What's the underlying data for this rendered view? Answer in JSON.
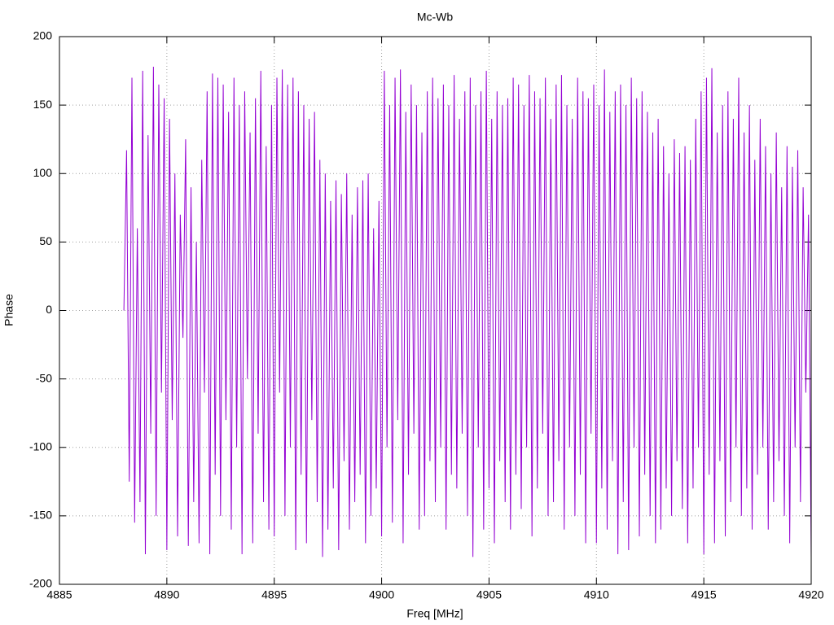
{
  "chart_data": {
    "type": "line",
    "title": "Mc-Wb",
    "x_label": "Freq [MHz]",
    "y_label": "Phase",
    "xlim": [
      4885,
      4920
    ],
    "xticks": [
      4885,
      4890,
      4895,
      4900,
      4905,
      4910,
      4915,
      4920
    ],
    "ylim": [
      -200,
      200
    ],
    "yticks": [
      -200,
      -150,
      -100,
      -50,
      0,
      50,
      100,
      150,
      200
    ],
    "grid": true,
    "series": [
      {
        "color": "#9400d3",
        "x": [
          4888,
          4888.125,
          4888.25,
          4888.375,
          4888.5,
          4888.625,
          4888.75,
          4888.875,
          4889,
          4889.125,
          4889.25,
          4889.375,
          4889.5,
          4889.625,
          4889.75,
          4889.875,
          4890,
          4890.125,
          4890.25,
          4890.375,
          4890.5,
          4890.625,
          4890.75,
          4890.875,
          4891,
          4891.125,
          4891.25,
          4891.375,
          4891.5,
          4891.625,
          4891.75,
          4891.875,
          4892,
          4892.125,
          4892.25,
          4892.375,
          4892.5,
          4892.625,
          4892.75,
          4892.875,
          4893,
          4893.125,
          4893.25,
          4893.375,
          4893.5,
          4893.625,
          4893.75,
          4893.875,
          4894,
          4894.125,
          4894.25,
          4894.375,
          4894.5,
          4894.625,
          4894.75,
          4894.875,
          4895,
          4895.125,
          4895.25,
          4895.375,
          4895.5,
          4895.625,
          4895.75,
          4895.875,
          4896,
          4896.125,
          4896.25,
          4896.375,
          4896.5,
          4896.625,
          4896.75,
          4896.875,
          4897,
          4897.125,
          4897.25,
          4897.375,
          4897.5,
          4897.625,
          4897.75,
          4897.875,
          4898,
          4898.125,
          4898.25,
          4898.375,
          4898.5,
          4898.625,
          4898.75,
          4898.875,
          4899,
          4899.125,
          4899.25,
          4899.375,
          4899.5,
          4899.625,
          4899.75,
          4899.875,
          4900,
          4900.125,
          4900.25,
          4900.375,
          4900.5,
          4900.625,
          4900.75,
          4900.875,
          4901,
          4901.125,
          4901.25,
          4901.375,
          4901.5,
          4901.625,
          4901.75,
          4901.875,
          4902,
          4902.125,
          4902.25,
          4902.375,
          4902.5,
          4902.625,
          4902.75,
          4902.875,
          4903,
          4903.125,
          4903.25,
          4903.375,
          4903.5,
          4903.625,
          4903.75,
          4903.875,
          4904,
          4904.125,
          4904.25,
          4904.375,
          4904.5,
          4904.625,
          4904.75,
          4904.875,
          4905,
          4905.125,
          4905.25,
          4905.375,
          4905.5,
          4905.625,
          4905.75,
          4905.875,
          4906,
          4906.125,
          4906.25,
          4906.375,
          4906.5,
          4906.625,
          4906.75,
          4906.875,
          4907,
          4907.125,
          4907.25,
          4907.375,
          4907.5,
          4907.625,
          4907.75,
          4907.875,
          4908,
          4908.125,
          4908.25,
          4908.375,
          4908.5,
          4908.625,
          4908.75,
          4908.875,
          4909,
          4909.125,
          4909.25,
          4909.375,
          4909.5,
          4909.625,
          4909.75,
          4909.875,
          4910,
          4910.125,
          4910.25,
          4910.375,
          4910.5,
          4910.625,
          4910.75,
          4910.875,
          4911,
          4911.125,
          4911.25,
          4911.375,
          4911.5,
          4911.625,
          4911.75,
          4911.875,
          4912,
          4912.125,
          4912.25,
          4912.375,
          4912.5,
          4912.625,
          4912.75,
          4912.875,
          4913,
          4913.125,
          4913.25,
          4913.375,
          4913.5,
          4913.625,
          4913.75,
          4913.875,
          4914,
          4914.125,
          4914.25,
          4914.375,
          4914.5,
          4914.625,
          4914.75,
          4914.875,
          4915,
          4915.125,
          4915.25,
          4915.375,
          4915.5,
          4915.625,
          4915.75,
          4915.875,
          4916,
          4916.125,
          4916.25,
          4916.375,
          4916.5,
          4916.625,
          4916.75,
          4916.875,
          4917,
          4917.125,
          4917.25,
          4917.375,
          4917.5,
          4917.625,
          4917.75,
          4917.875,
          4918,
          4918.125,
          4918.25,
          4918.375,
          4918.5,
          4918.625,
          4918.75,
          4918.875,
          4919,
          4919.125,
          4919.25,
          4919.375,
          4919.5,
          4919.625,
          4919.75,
          4919.875,
          4920
        ],
        "values": [
          0,
          117,
          -125,
          170,
          -155,
          60,
          -140,
          175,
          -178,
          128,
          -90,
          178,
          -150,
          165,
          -60,
          155,
          -175,
          140,
          -80,
          100,
          -165,
          70,
          -20,
          125,
          -172,
          90,
          -140,
          50,
          -170,
          110,
          -60,
          160,
          -178,
          173,
          -120,
          170,
          -150,
          165,
          -80,
          145,
          -160,
          170,
          -100,
          150,
          -178,
          160,
          -50,
          130,
          -170,
          155,
          -90,
          175,
          -140,
          120,
          -160,
          150,
          -165,
          170,
          -60,
          176,
          -150,
          165,
          -100,
          170,
          -175,
          160,
          -120,
          150,
          -170,
          140,
          -80,
          145,
          -140,
          110,
          -180,
          100,
          -160,
          80,
          -130,
          95,
          -175,
          85,
          -110,
          100,
          -160,
          70,
          -140,
          90,
          -120,
          95,
          -170,
          100,
          -150,
          60,
          -130,
          80,
          -165,
          175,
          -100,
          150,
          -155,
          170,
          -80,
          176,
          -170,
          145,
          -120,
          165,
          -90,
          150,
          -160,
          130,
          -150,
          160,
          -110,
          170,
          -140,
          155,
          -100,
          165,
          -160,
          150,
          -120,
          172,
          -130,
          140,
          -90,
          160,
          -150,
          170,
          -180,
          150,
          -100,
          160,
          -160,
          175,
          -130,
          140,
          -170,
          160,
          -110,
          150,
          -140,
          155,
          -160,
          170,
          -120,
          165,
          -145,
          150,
          -100,
          172,
          -165,
          160,
          -130,
          155,
          -90,
          170,
          -150,
          140,
          -140,
          165,
          -110,
          172,
          -160,
          150,
          -100,
          140,
          -150,
          170,
          -120,
          160,
          -170,
          155,
          -90,
          165,
          -170,
          150,
          -130,
          176,
          -160,
          145,
          -110,
          160,
          -178,
          165,
          -140,
          150,
          -175,
          170,
          -100,
          155,
          -165,
          160,
          -120,
          145,
          -150,
          130,
          -170,
          140,
          -160,
          120,
          -130,
          100,
          -150,
          125,
          -110,
          115,
          -145,
          120,
          -170,
          110,
          -130,
          140,
          -100,
          160,
          -178,
          170,
          -120,
          177,
          -170,
          130,
          -110,
          150,
          -165,
          160,
          -140,
          140,
          -100,
          170,
          -150,
          130,
          -130,
          150,
          -160,
          110,
          -120,
          140,
          -100,
          120,
          -160,
          100,
          -140,
          130,
          -110,
          90,
          -150,
          120,
          -170,
          105,
          -100,
          117,
          -140,
          90,
          -60,
          70,
          -180
        ]
      }
    ]
  }
}
